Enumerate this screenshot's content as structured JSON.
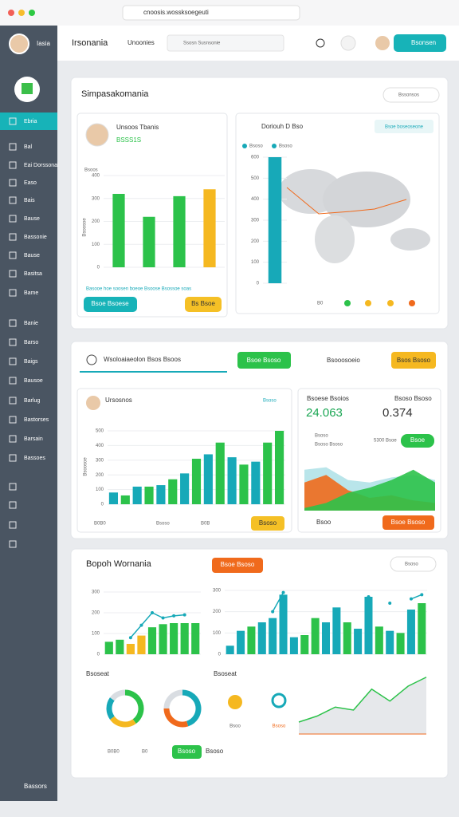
{
  "browser": {
    "url": "cnoosis.wossksoegeuti"
  },
  "sidebar": {
    "user": "Iasia",
    "items": [
      "Ebria",
      "Bal",
      "Eai Dorssonal",
      "Easo",
      "Bais",
      "Bause",
      "Bassonie",
      "Bause",
      "Basitsa",
      "Bame",
      "Banie",
      "Barso",
      "Baigs",
      "Bausoe",
      "Barlug",
      "Bastorses",
      "Barsain",
      "Bassoes"
    ],
    "footer": "Bassors"
  },
  "header": {
    "title": "Irsonania",
    "nav": "Unoonies",
    "search": "Ssosn Susnsonie",
    "button": "Bsonsen"
  },
  "overview": {
    "title": "Simpasakomania",
    "dropdown": "Bssonsos",
    "profile": {
      "name": "Unsoos Tbanis",
      "sub": "BSSS1S"
    },
    "chart": {
      "label": "Bsoos",
      "axis_label": "Bsoosoe",
      "ylim": [
        0,
        400
      ],
      "yticks": [
        0,
        100,
        200,
        300,
        400
      ],
      "values": [
        320,
        220,
        310,
        340
      ],
      "colors": [
        "#2cc24a",
        "#2cc24a",
        "#2cc24a",
        "#f5b820"
      ],
      "caption": "Basooe hoe soosen boeoe Bsoose Bsossoe soas"
    },
    "buttons": [
      "Bsoe Bsoese",
      "Bs Bsoe"
    ],
    "map": {
      "title": "Doriouh D Bso",
      "badge": "Bsoe boseoseone",
      "legend": [
        "Bsoso",
        "Bsoso"
      ],
      "ylim": [
        0,
        600
      ],
      "yticks": [
        0,
        100,
        200,
        300,
        400,
        500,
        600
      ],
      "values": [
        600
      ],
      "colors": [
        "#17a9b8"
      ],
      "footer": "B0"
    }
  },
  "activity": {
    "tab": "Wsoloaiaeolon Bsos Bsoos",
    "tab_button": "Bsoe Bsoso",
    "side_text": "Bsooosoeio",
    "side_button": "Bsos Bsoso",
    "chart": {
      "title": "Ursosnos",
      "badge": "Bsoso",
      "axis_label": "Bsoosoe",
      "ylim": [
        0,
        500
      ],
      "yticks": [
        0,
        100,
        200,
        300,
        400,
        500
      ],
      "values": [
        80,
        60,
        120,
        120,
        130,
        170,
        210,
        310,
        340,
        420,
        320,
        270,
        290,
        420,
        500
      ],
      "colors": [
        "#17a9b8",
        "#2cc24a",
        "#17a9b8",
        "#2cc24a",
        "#17a9b8",
        "#2cc24a",
        "#17a9b8",
        "#2cc24a",
        "#17a9b8",
        "#2cc24a",
        "#17a9b8",
        "#2cc24a",
        "#17a9b8",
        "#2cc24a",
        "#2cc24a"
      ]
    },
    "footer": {
      "chips": [
        "B0B0",
        "Bsoso",
        "B0B"
      ],
      "button": "Bsoso"
    },
    "stats": {
      "labels": [
        "Bsoese Bsoios",
        "Bsoso Bsoso"
      ],
      "big": [
        "24.063",
        "0.374"
      ],
      "rows": [
        "Bsoso",
        "Bsoso Bsoso"
      ],
      "note": "5300 Bsoe",
      "button": "Bsoe",
      "ylim": [
        0,
        100
      ],
      "series": [
        {
          "color": "#f06a1c",
          "values": [
            55,
            70,
            40,
            25,
            30,
            20,
            15
          ]
        },
        {
          "color": "#2cc24a",
          "values": [
            5,
            15,
            35,
            45,
            60,
            80,
            55
          ]
        },
        {
          "color": "#17a9b8",
          "values": [
            80,
            85,
            60,
            55,
            65,
            70,
            60
          ]
        }
      ],
      "footer": "Bsoo",
      "footer_button": "Bsoe Bsoso"
    }
  },
  "reports": {
    "title": "Bopoh Wornania",
    "button": "Bsoe Bsoso",
    "dropdown": "Bsoso",
    "left": {
      "ylim": [
        0,
        300
      ],
      "yticks": [
        0,
        100,
        200,
        300
      ],
      "values": [
        60,
        70,
        50,
        90,
        130,
        145,
        150,
        150,
        150
      ],
      "colors": [
        "#2cc24a",
        "#2cc24a",
        "#f5b820",
        "#f5b820",
        "#2cc24a",
        "#2cc24a",
        "#2cc24a",
        "#2cc24a",
        "#2cc24a"
      ],
      "line": [
        null,
        null,
        80,
        140,
        200,
        175,
        185,
        190,
        null
      ],
      "line_color": "#17a9b8"
    },
    "right": {
      "ylim": [
        0,
        300
      ],
      "yticks": [
        0,
        100,
        200,
        300
      ],
      "values": [
        40,
        110,
        130,
        150,
        170,
        280,
        80,
        90,
        170,
        150,
        220,
        150,
        120,
        270,
        130,
        110,
        100,
        210,
        240
      ],
      "colors": [
        "#17a9b8",
        "#17a9b8",
        "#2cc24a",
        "#17a9b8",
        "#17a9b8",
        "#17a9b8",
        "#17a9b8",
        "#2cc24a",
        "#2cc24a",
        "#17a9b8",
        "#17a9b8",
        "#2cc24a",
        "#17a9b8",
        "#17a9b8",
        "#2cc24a",
        "#17a9b8",
        "#2cc24a",
        "#17a9b8",
        "#2cc24a"
      ],
      "line": [
        null,
        null,
        null,
        null,
        200,
        290,
        null,
        null,
        null,
        null,
        null,
        null,
        null,
        270,
        null,
        240,
        null,
        260,
        280
      ],
      "line_color": "#17a9b8"
    },
    "labels": [
      "Bsoseat",
      "Bsoseat"
    ],
    "donuts": [
      {
        "values": [
          40,
          25,
          20,
          15
        ],
        "colors": [
          "#2cc24a",
          "#f5b820",
          "#17a9b8",
          "#d9dde2"
        ]
      },
      {
        "values": [
          45,
          30,
          25
        ],
        "colors": [
          "#17a9b8",
          "#f06a1c",
          "#d9dde2"
        ]
      }
    ],
    "weather": [
      "Bsoo",
      "Bsoso"
    ],
    "trend": {
      "ylim": [
        0,
        100
      ],
      "values": [
        20,
        30,
        45,
        40,
        75,
        55,
        80,
        95
      ],
      "color": "#2cc24a"
    },
    "footer": {
      "chips": [
        "B0B0",
        "B0"
      ],
      "button": "Bsoso",
      "text": "Bsoso"
    }
  }
}
